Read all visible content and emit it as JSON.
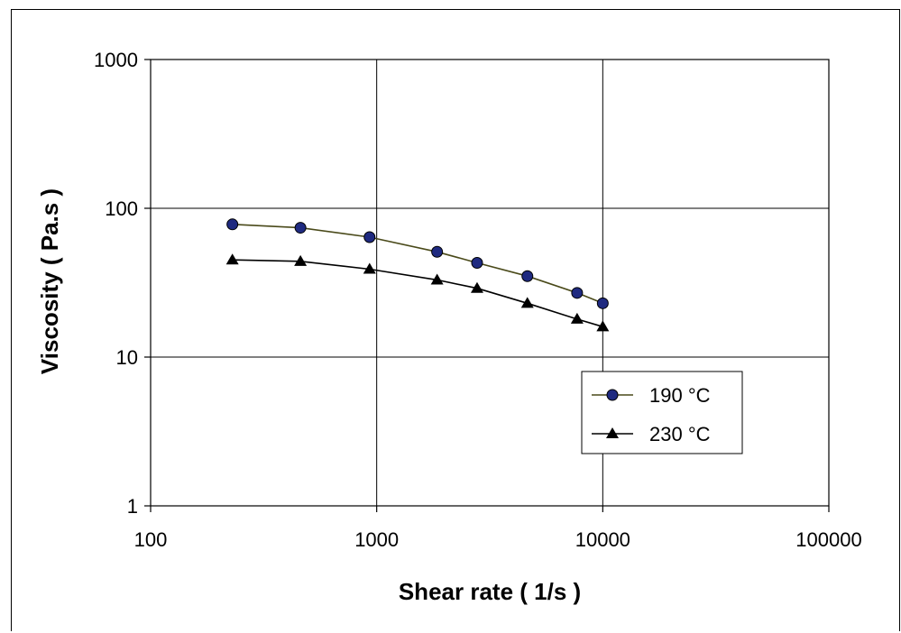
{
  "chart_data": {
    "type": "line",
    "title": "",
    "xlabel": "Shear rate ( 1/s )",
    "ylabel": "Viscosity ( Pa.s )",
    "x_scale": "log",
    "y_scale": "log",
    "xlim": [
      100,
      100000
    ],
    "ylim": [
      1,
      1000
    ],
    "x_ticks": [
      "100",
      "1000",
      "10000",
      "100000"
    ],
    "y_ticks": [
      "1",
      "10",
      "100",
      "1000"
    ],
    "grid": "major",
    "legend_position": "lower-right inside plot",
    "series": [
      {
        "name": "190 °C",
        "marker": "circle",
        "marker_color": "#1f2a80",
        "line_color": "#4a4a1a",
        "x": [
          230,
          460,
          930,
          1850,
          2780,
          4640,
          7700,
          10000
        ],
        "y": [
          78,
          74,
          64,
          51,
          43,
          35,
          27,
          23
        ]
      },
      {
        "name": "230 °C",
        "marker": "triangle",
        "marker_color": "#000000",
        "line_color": "#000000",
        "x": [
          230,
          460,
          930,
          1850,
          2780,
          4640,
          7700,
          10000
        ],
        "y": [
          45,
          44,
          39,
          33,
          29,
          23,
          18,
          16
        ]
      }
    ]
  }
}
